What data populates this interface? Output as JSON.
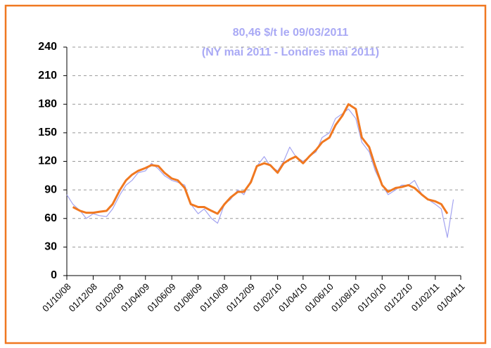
{
  "chart_data": {
    "type": "line",
    "title": "80,46 $/t le 09/03/2011",
    "subtitle": "(NY mai 2011 - Londres mai 2011)",
    "x": [
      "01/10/08",
      "15/10/08",
      "01/11/08",
      "15/11/08",
      "01/12/08",
      "15/12/08",
      "01/01/09",
      "15/01/09",
      "01/02/09",
      "15/02/09",
      "01/03/09",
      "15/03/09",
      "01/04/09",
      "15/04/09",
      "01/05/09",
      "15/05/09",
      "01/06/09",
      "15/06/09",
      "01/07/09",
      "15/07/09",
      "01/08/09",
      "15/08/09",
      "01/09/09",
      "15/09/09",
      "01/10/09",
      "15/10/09",
      "01/11/09",
      "15/11/09",
      "01/12/09",
      "15/12/09",
      "01/01/10",
      "15/01/10",
      "01/02/10",
      "15/02/10",
      "01/03/10",
      "15/03/10",
      "01/04/10",
      "15/04/10",
      "01/05/10",
      "15/05/10",
      "01/06/10",
      "15/06/10",
      "01/07/10",
      "15/07/10",
      "01/08/10",
      "15/08/10",
      "01/09/10",
      "15/09/10",
      "01/10/10",
      "15/10/10",
      "01/11/10",
      "15/11/10",
      "01/12/10",
      "15/12/10",
      "01/01/11",
      "15/01/11",
      "01/02/11",
      "15/02/11",
      "01/03/11",
      "15/03/11"
    ],
    "series": [
      {
        "color": "#a3a3f0",
        "values": [
          85,
          75,
          68,
          60,
          65,
          63,
          62,
          70,
          85,
          95,
          100,
          108,
          110,
          118,
          112,
          105,
          100,
          98,
          95,
          75,
          65,
          70,
          60,
          55,
          75,
          80,
          90,
          85,
          100,
          115,
          125,
          115,
          110,
          120,
          135,
          125,
          120,
          125,
          130,
          145,
          150,
          165,
          170,
          175,
          165,
          140,
          130,
          110,
          95,
          85,
          90,
          95,
          95,
          100,
          85,
          80,
          75,
          70,
          40,
          80
        ]
      },
      {
        "color": "#f07820",
        "values": [
          null,
          72,
          68,
          66,
          66,
          67,
          68,
          75,
          90,
          100,
          106,
          110,
          113,
          116,
          115,
          108,
          102,
          100,
          92,
          75,
          72,
          72,
          68,
          65,
          75,
          82,
          88,
          88,
          98,
          115,
          118,
          116,
          108,
          118,
          122,
          125,
          118,
          125,
          132,
          140,
          145,
          158,
          168,
          180,
          175,
          145,
          135,
          115,
          95,
          88,
          92,
          93,
          95,
          92,
          85,
          80,
          78,
          75,
          65,
          null
        ]
      }
    ],
    "xticks": [
      "01/10/08",
      "01/12/08",
      "01/02/09",
      "01/04/09",
      "01/06/09",
      "01/08/09",
      "01/10/09",
      "01/12/09",
      "01/02/10",
      "01/04/10",
      "01/06/10",
      "01/08/10",
      "01/10/10",
      "01/12/10",
      "01/02/11",
      "01/04/11"
    ],
    "ylim": [
      0,
      240
    ],
    "yticks": [
      0,
      30,
      60,
      90,
      120,
      150,
      180,
      210,
      240
    ],
    "grid": true
  }
}
